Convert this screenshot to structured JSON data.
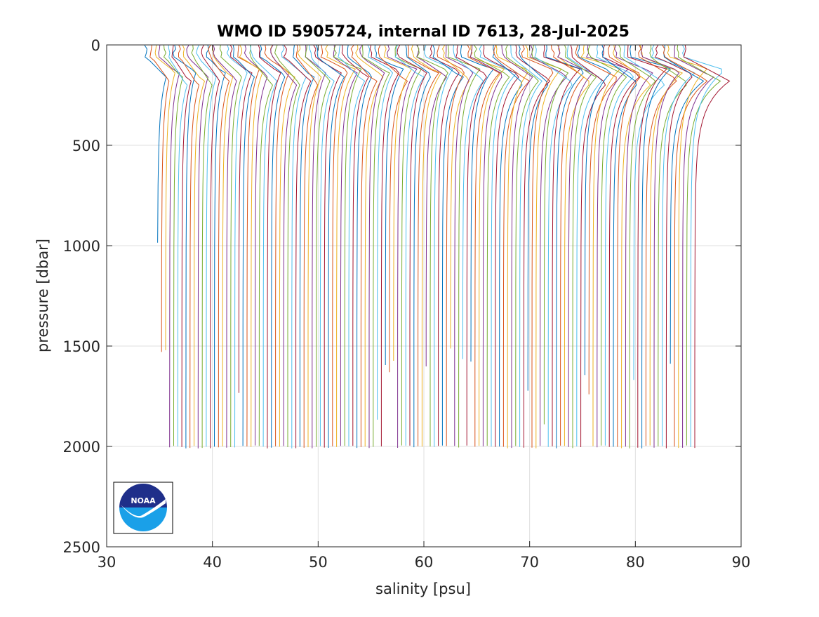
{
  "chart_data": {
    "type": "line",
    "title": "WMO ID 5905724, internal ID 7613, 28-Jul-2025",
    "xlabel": "salinity [psu]",
    "ylabel": "pressure [dbar]",
    "xlim": [
      30,
      90
    ],
    "ylim": [
      0,
      2500
    ],
    "y_reversed": true,
    "grid": true,
    "xticks": [
      "30",
      "40",
      "50",
      "60",
      "70",
      "80",
      "90"
    ],
    "yticks": [
      "0",
      "500",
      "1000",
      "1500",
      "2000",
      "2500"
    ],
    "profiles": {
      "count": 133,
      "first_deep_salinity": 34.8,
      "last_deep_salinity": 85.6,
      "offset_per_profile_psu": 0.385,
      "max_pressure_dbar": 2010,
      "first_profile_max_pressure_dbar": 985,
      "series_colors": [
        "#0072BD",
        "#D95319",
        "#EDB120",
        "#7E2F8E",
        "#77AC30",
        "#4DBEEE",
        "#A2142F"
      ]
    },
    "logo": {
      "name": "noaa-logo",
      "text": "NOAA"
    }
  }
}
